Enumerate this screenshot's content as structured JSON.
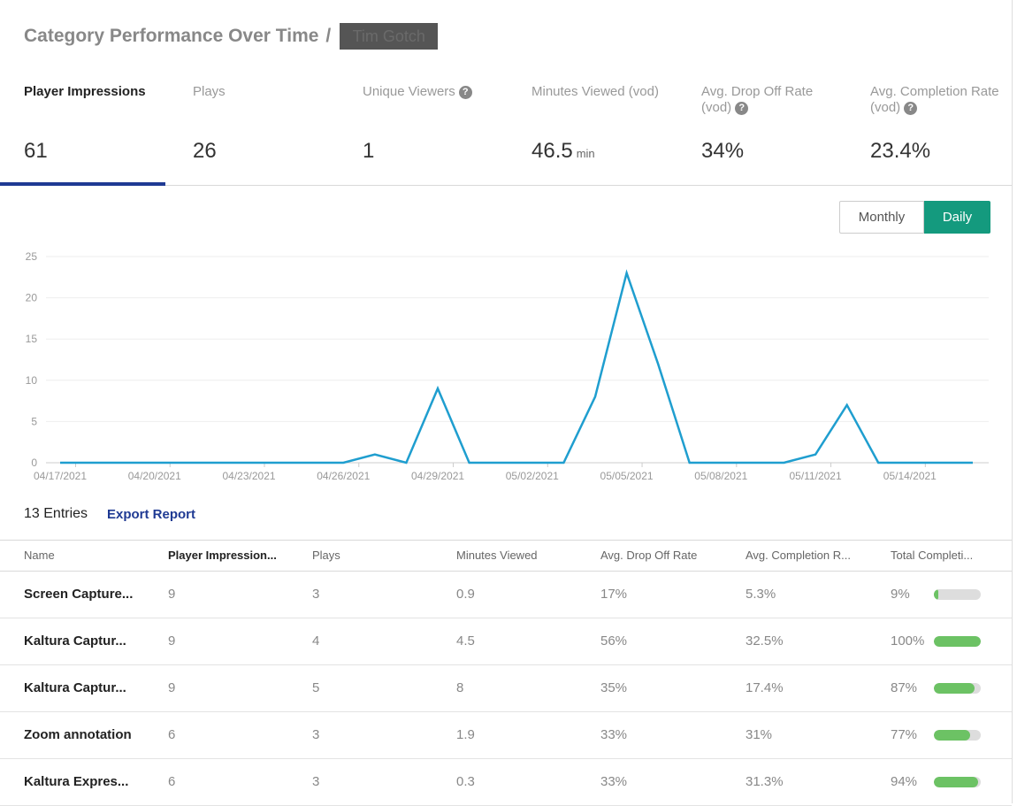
{
  "header": {
    "title": "Category Performance Over Time",
    "separator": "/",
    "redacted_text": "Tim Gotch"
  },
  "metrics": [
    {
      "label": "Player Impressions",
      "value": "61",
      "unit": "",
      "help": false,
      "active": true
    },
    {
      "label": "Plays",
      "value": "26",
      "unit": "",
      "help": false,
      "active": false
    },
    {
      "label": "Unique Viewers",
      "value": "1",
      "unit": "",
      "help": true,
      "active": false
    },
    {
      "label": "Minutes Viewed (vod)",
      "value": "46.5",
      "unit": "min",
      "help": false,
      "active": false
    },
    {
      "label": "Avg. Drop Off Rate (vod)",
      "value": "34%",
      "unit": "",
      "help": true,
      "active": false
    },
    {
      "label": "Avg. Completion Rate (vod)",
      "value": "23.4%",
      "unit": "",
      "help": true,
      "active": false
    }
  ],
  "help_glyph": "?",
  "toggle": {
    "monthly": "Monthly",
    "daily": "Daily",
    "selected": "daily"
  },
  "chart_data": {
    "type": "line",
    "title": "",
    "xlabel": "",
    "ylabel": "",
    "ylim": [
      0,
      25
    ],
    "yticks": [
      0,
      5,
      10,
      15,
      20,
      25
    ],
    "grid": true,
    "line_color": "#1f9ecf",
    "x_tick_labels": [
      "04/17/2021",
      "04/20/2021",
      "04/23/2021",
      "04/26/2021",
      "04/29/2021",
      "05/02/2021",
      "05/05/2021",
      "05/08/2021",
      "05/11/2021",
      "05/14/2021"
    ],
    "x": [
      "04/17/2021",
      "04/18/2021",
      "04/19/2021",
      "04/20/2021",
      "04/21/2021",
      "04/22/2021",
      "04/23/2021",
      "04/24/2021",
      "04/25/2021",
      "04/26/2021",
      "04/27/2021",
      "04/28/2021",
      "04/29/2021",
      "04/30/2021",
      "05/01/2021",
      "05/02/2021",
      "05/03/2021",
      "05/04/2021",
      "05/05/2021",
      "05/06/2021",
      "05/07/2021",
      "05/08/2021",
      "05/09/2021",
      "05/10/2021",
      "05/11/2021",
      "05/12/2021",
      "05/13/2021",
      "05/14/2021",
      "05/15/2021",
      "05/16/2021"
    ],
    "series": [
      {
        "values": [
          0,
          0,
          0,
          0,
          0,
          0,
          0,
          0,
          0,
          0,
          1,
          0,
          9,
          0,
          0,
          0,
          0,
          8,
          23,
          12,
          0,
          0,
          0,
          0,
          1,
          7,
          0,
          0,
          0,
          0
        ]
      }
    ]
  },
  "entries": {
    "count_label": "13 Entries",
    "export_label": "Export Report"
  },
  "table": {
    "columns": [
      "Name",
      "Player Impression...",
      "Plays",
      "Minutes Viewed",
      "Avg. Drop Off Rate",
      "Avg. Completion R...",
      "Total Completi..."
    ],
    "rows": [
      {
        "name": "Screen Capture...",
        "impressions": "9",
        "plays": "3",
        "minutes": "0.9",
        "drop_off": "17%",
        "completion": "5.3%",
        "total": "9%",
        "total_fraction": 0.09
      },
      {
        "name": "Kaltura Captur...",
        "impressions": "9",
        "plays": "4",
        "minutes": "4.5",
        "drop_off": "56%",
        "completion": "32.5%",
        "total": "100%",
        "total_fraction": 1.0
      },
      {
        "name": "Kaltura Captur...",
        "impressions": "9",
        "plays": "5",
        "minutes": "8",
        "drop_off": "35%",
        "completion": "17.4%",
        "total": "87%",
        "total_fraction": 0.87
      },
      {
        "name": "Zoom annotation",
        "impressions": "6",
        "plays": "3",
        "minutes": "1.9",
        "drop_off": "33%",
        "completion": "31%",
        "total": "77%",
        "total_fraction": 0.77
      },
      {
        "name": "Kaltura Expres...",
        "impressions": "6",
        "plays": "3",
        "minutes": "0.3",
        "drop_off": "33%",
        "completion": "31.3%",
        "total": "94%",
        "total_fraction": 0.94
      }
    ]
  }
}
